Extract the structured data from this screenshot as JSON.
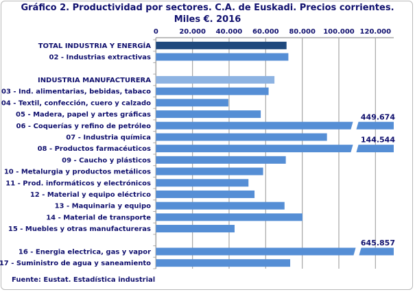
{
  "chart_data": {
    "type": "bar",
    "orientation": "horizontal",
    "title": "Gráfico 2. Productividad por sectores. C.A. de Euskadi. Precios corrientes.",
    "subtitle": "Miles €. 2016",
    "source": "Fuente: Eustat. Estadística industrial",
    "xlim": [
      0,
      130000
    ],
    "x_ticks": [
      "0",
      "20.000",
      "40.000",
      "60.000",
      "80.000",
      "100.000",
      "120.000"
    ],
    "tick_values": [
      0,
      20000,
      40000,
      60000,
      80000,
      100000,
      120000
    ],
    "grid": "vertical",
    "axis_position": "top",
    "categories": [
      {
        "label": "TOTAL INDUSTRIA Y ENERGÍA",
        "value": 71400,
        "color": "#1f497d",
        "bold": true
      },
      {
        "label": "02 - Industrias extractivas",
        "value": 72400
      },
      {
        "label": "",
        "value": null
      },
      {
        "label": "INDUSTRIA MANUFACTURERA",
        "value": 64800,
        "color": "#8db3e2"
      },
      {
        "label": "03 - Ind. alimentarias, bebidas, tabaco",
        "value": 61600
      },
      {
        "label": "04 - Textil, confección, cuero y calzado",
        "value": 39600
      },
      {
        "label": "05 - Madera, papel y artes gráficas",
        "value": 57300
      },
      {
        "label": "06 - Coquerías y refino de petróleo",
        "value": 449674,
        "data_label": "449.674",
        "broken": true
      },
      {
        "label": "07 - Industria química",
        "value": 93500
      },
      {
        "label": "08 - Productos farmacéuticos",
        "value": 144544,
        "data_label": "144.544",
        "broken": true
      },
      {
        "label": "09 - Caucho y plásticos",
        "value": 71000
      },
      {
        "label": "10 - Metalurgia y productos metálicos",
        "value": 58600
      },
      {
        "label": "11 - Prod. informáticos y electrónicos",
        "value": 50600
      },
      {
        "label": "12 - Material y equipo eléctrico",
        "value": 53900
      },
      {
        "label": "13 - Maquinaria y equipo",
        "value": 70300
      },
      {
        "label": "14 - Material de transporte",
        "value": 80100
      },
      {
        "label": "15 - Muebles y otras manufactureras",
        "value": 43000
      },
      {
        "label": "",
        "value": null
      },
      {
        "label": "16 - Energia electrica, gas y vapor",
        "value": 645857,
        "data_label": "645.857",
        "broken": true
      },
      {
        "label": "17 - Suministro de agua y saneamiento",
        "value": 73400
      }
    ],
    "default_color": "#558ed5"
  }
}
